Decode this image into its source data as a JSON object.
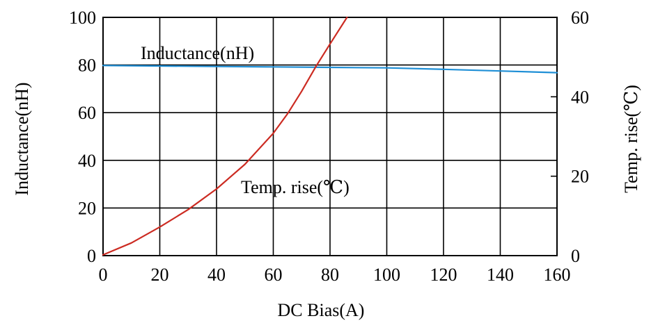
{
  "chart_data": {
    "type": "line",
    "xlabel": "DC Bias(A)",
    "ylabel_left": "Inductance(nH)",
    "ylabel_right": "Temp. rise(℃)",
    "xlim": [
      0,
      160
    ],
    "ylim_left": [
      0,
      100
    ],
    "ylim_right": [
      0,
      60
    ],
    "x_ticks": [
      "0",
      "20",
      "40",
      "60",
      "80",
      "100",
      "120",
      "140",
      "160"
    ],
    "y_left_ticks": [
      "0",
      "20",
      "40",
      "60",
      "80",
      "100"
    ],
    "y_right_ticks": [
      "0",
      "20",
      "40",
      "60"
    ],
    "grid": true,
    "annotations": [
      "Inductance(nH)",
      "Temp. rise(℃)"
    ],
    "series": [
      {
        "name": "Inductance(nH)",
        "axis": "left",
        "color": "#1f8fd6",
        "x": [
          0,
          20,
          40,
          60,
          80,
          100,
          120,
          140,
          160
        ],
        "y": [
          79.8,
          79.6,
          79.4,
          79.2,
          79.0,
          78.8,
          78.2,
          77.5,
          76.8
        ]
      },
      {
        "name": "Temp. rise(℃)",
        "axis": "right",
        "color": "#cc2b22",
        "x": [
          0,
          10,
          20,
          30,
          40,
          50,
          60,
          65,
          70,
          75,
          80,
          86
        ],
        "y": [
          0.2,
          3.2,
          7.2,
          11.6,
          16.8,
          23.0,
          30.8,
          35.7,
          41.4,
          47.6,
          53.3,
          60.0
        ]
      }
    ]
  }
}
